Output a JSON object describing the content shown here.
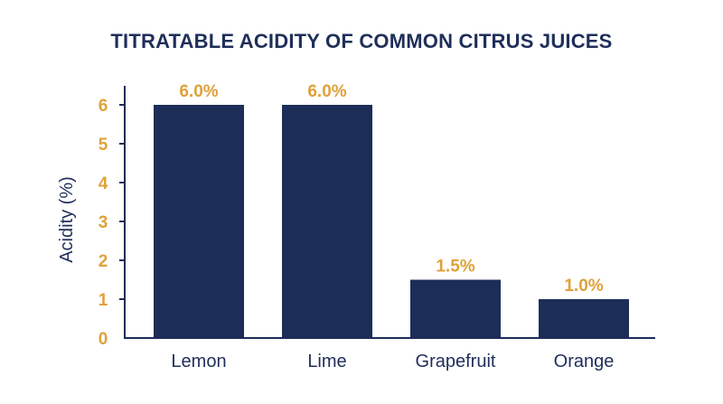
{
  "colors": {
    "bar": "#1c2d58",
    "axis": "#1c2d58",
    "accent": "#e0a13a",
    "title": "#1f2f5a",
    "text": "#1f2f5a"
  },
  "chart_data": {
    "type": "bar",
    "title": "TITRATABLE ACIDITY OF COMMON CITRUS JUICES",
    "xlabel": "",
    "ylabel": "Acidity (%)",
    "categories": [
      "Lemon",
      "Lime",
      "Grapefruit",
      "Orange"
    ],
    "values": [
      6.0,
      6.0,
      1.5,
      1.0
    ],
    "data_labels": [
      "6.0%",
      "6.0%",
      "1.5%",
      "1.0%"
    ],
    "ylim": [
      0,
      6.5
    ],
    "yticks": [
      0,
      1,
      2,
      3,
      4,
      5,
      6
    ],
    "grid": false,
    "legend": "none"
  }
}
